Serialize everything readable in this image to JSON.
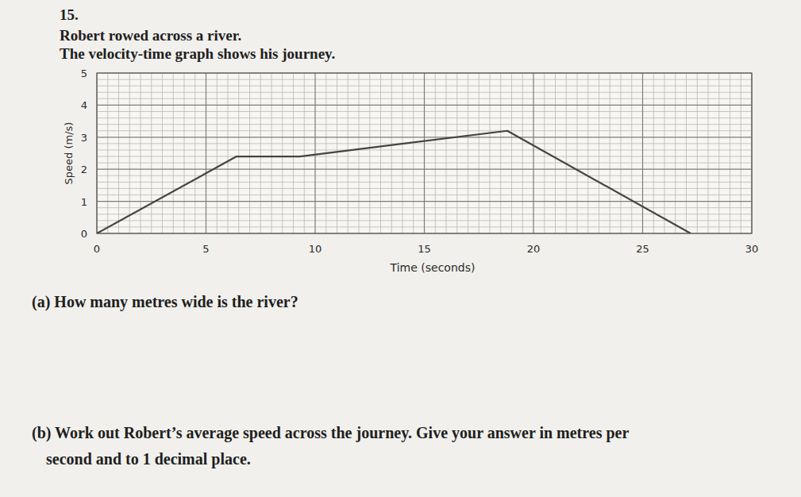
{
  "question": {
    "number": "15.",
    "lines": [
      "Robert rowed across a river.",
      "The velocity-time graph shows his journey."
    ],
    "parts": [
      [
        "(a) How many metres wide is the river?"
      ],
      [
        "(b) Work out Robert’s average speed across the journey. Give your answer in metres per",
        "second and to 1 decimal place."
      ]
    ]
  },
  "chart_data": {
    "type": "line",
    "x_label": "Time (seconds)",
    "y_label": "Speed (m/s)",
    "x": [
      0,
      6.4,
      9.3,
      18.8,
      27.2
    ],
    "values": [
      0,
      2.4,
      2.4,
      3.2,
      0
    ],
    "color": "#444444",
    "xlim": [
      0,
      30
    ],
    "ylim": [
      0,
      5
    ],
    "xticks": [
      0,
      5,
      10,
      15,
      20,
      25,
      30
    ],
    "yticks": [
      0,
      1,
      2,
      3,
      4,
      5
    ],
    "grid": true
  }
}
